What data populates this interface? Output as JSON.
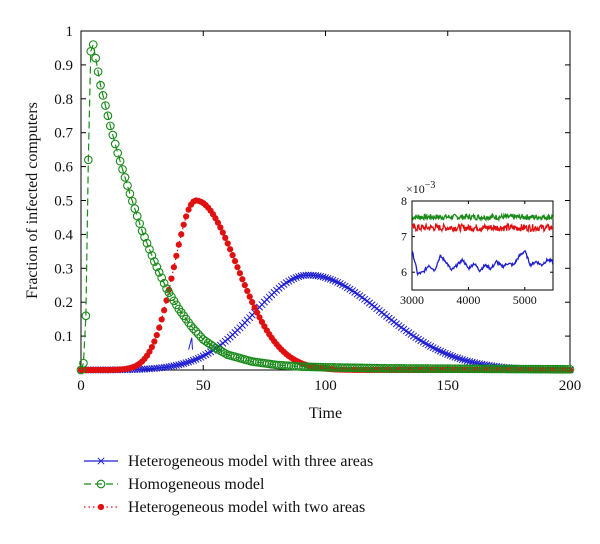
{
  "chart_data": {
    "type": "line",
    "title": "",
    "xlabel": "Time",
    "ylabel": "Fraction of infected computers",
    "xlim": [
      0,
      200
    ],
    "ylim": [
      0,
      1
    ],
    "xticks": [
      "0",
      "50",
      "100",
      "150",
      "200"
    ],
    "yticks": [
      "0.1",
      "0.2",
      "0.3",
      "0.4",
      "0.5",
      "0.6",
      "0.7",
      "0.8",
      "0.9",
      "1"
    ],
    "grid": false,
    "legend_position": "bottom",
    "series": [
      {
        "name": "Heterogeneous model with three areas",
        "color": "#1f1fd0",
        "line": "solid",
        "marker": "x",
        "model": {
          "kind": "gaussian",
          "peak_x": 93,
          "peak_y": 0.28,
          "sigma_left": 22,
          "sigma_right": 30
        }
      },
      {
        "name": "Homogeneous model",
        "color": "#1a8a1a",
        "line": "dashed",
        "marker": "o",
        "points": [
          [
            0,
            0
          ],
          [
            1,
            0.02
          ],
          [
            2,
            0.16
          ],
          [
            3,
            0.62
          ],
          [
            4,
            0.94
          ],
          [
            5,
            0.96
          ],
          [
            6,
            0.92
          ],
          [
            7,
            0.88
          ],
          [
            8,
            0.84
          ],
          [
            10,
            0.78
          ],
          [
            12,
            0.72
          ],
          [
            15,
            0.64
          ],
          [
            20,
            0.52
          ],
          [
            25,
            0.41
          ],
          [
            30,
            0.32
          ],
          [
            35,
            0.24
          ],
          [
            40,
            0.18
          ],
          [
            45,
            0.13
          ],
          [
            50,
            0.09
          ],
          [
            55,
            0.065
          ],
          [
            60,
            0.045
          ],
          [
            70,
            0.025
          ],
          [
            80,
            0.015
          ],
          [
            90,
            0.01
          ],
          [
            100,
            0.008
          ],
          [
            125,
            0.005
          ],
          [
            150,
            0.004
          ],
          [
            175,
            0.003
          ],
          [
            200,
            0.002
          ]
        ]
      },
      {
        "name": "Heterogeneous model with two areas",
        "color": "#e01010",
        "line": "dotted",
        "marker": "filled-dot",
        "model": {
          "kind": "gaussian",
          "peak_x": 47,
          "peak_y": 0.5,
          "sigma_left": 9,
          "sigma_right": 17
        }
      }
    ],
    "annotation": {
      "text": "1",
      "x": 45,
      "y": 0.08
    },
    "inset": {
      "type": "line",
      "xlim": [
        3000,
        5500
      ],
      "ylim": [
        5.5,
        8
      ],
      "xticks": [
        "3000",
        "4000",
        "5000"
      ],
      "yticks": [
        "6",
        "7",
        "8"
      ],
      "multiplier_label": "×10",
      "multiplier_exp": "−3",
      "series": [
        {
          "name": "Homogeneous model",
          "color": "#1a8a1a",
          "mean": 7.55,
          "amplitude": 0.08
        },
        {
          "name": "Heterogeneous model with two areas",
          "color": "#e01010",
          "mean": 7.25,
          "amplitude": 0.1
        },
        {
          "name": "Heterogeneous model with three areas",
          "color": "#1f1fd0",
          "points": [
            [
              3000,
              6.6
            ],
            [
              3050,
              6.3
            ],
            [
              3100,
              5.95
            ],
            [
              3200,
              6.0
            ],
            [
              3300,
              6.2
            ],
            [
              3400,
              6.05
            ],
            [
              3500,
              6.45
            ],
            [
              3600,
              6.3
            ],
            [
              3700,
              6.05
            ],
            [
              3800,
              6.2
            ],
            [
              3900,
              6.35
            ],
            [
              4000,
              6.1
            ],
            [
              4100,
              6.25
            ],
            [
              4200,
              6.05
            ],
            [
              4300,
              6.2
            ],
            [
              4400,
              6.1
            ],
            [
              4500,
              6.3
            ],
            [
              4600,
              6.15
            ],
            [
              4700,
              6.25
            ],
            [
              4800,
              6.2
            ],
            [
              4900,
              6.45
            ],
            [
              5000,
              6.6
            ],
            [
              5100,
              6.2
            ],
            [
              5200,
              6.3
            ],
            [
              5300,
              6.2
            ],
            [
              5400,
              6.35
            ],
            [
              5500,
              6.3
            ]
          ]
        }
      ]
    }
  }
}
